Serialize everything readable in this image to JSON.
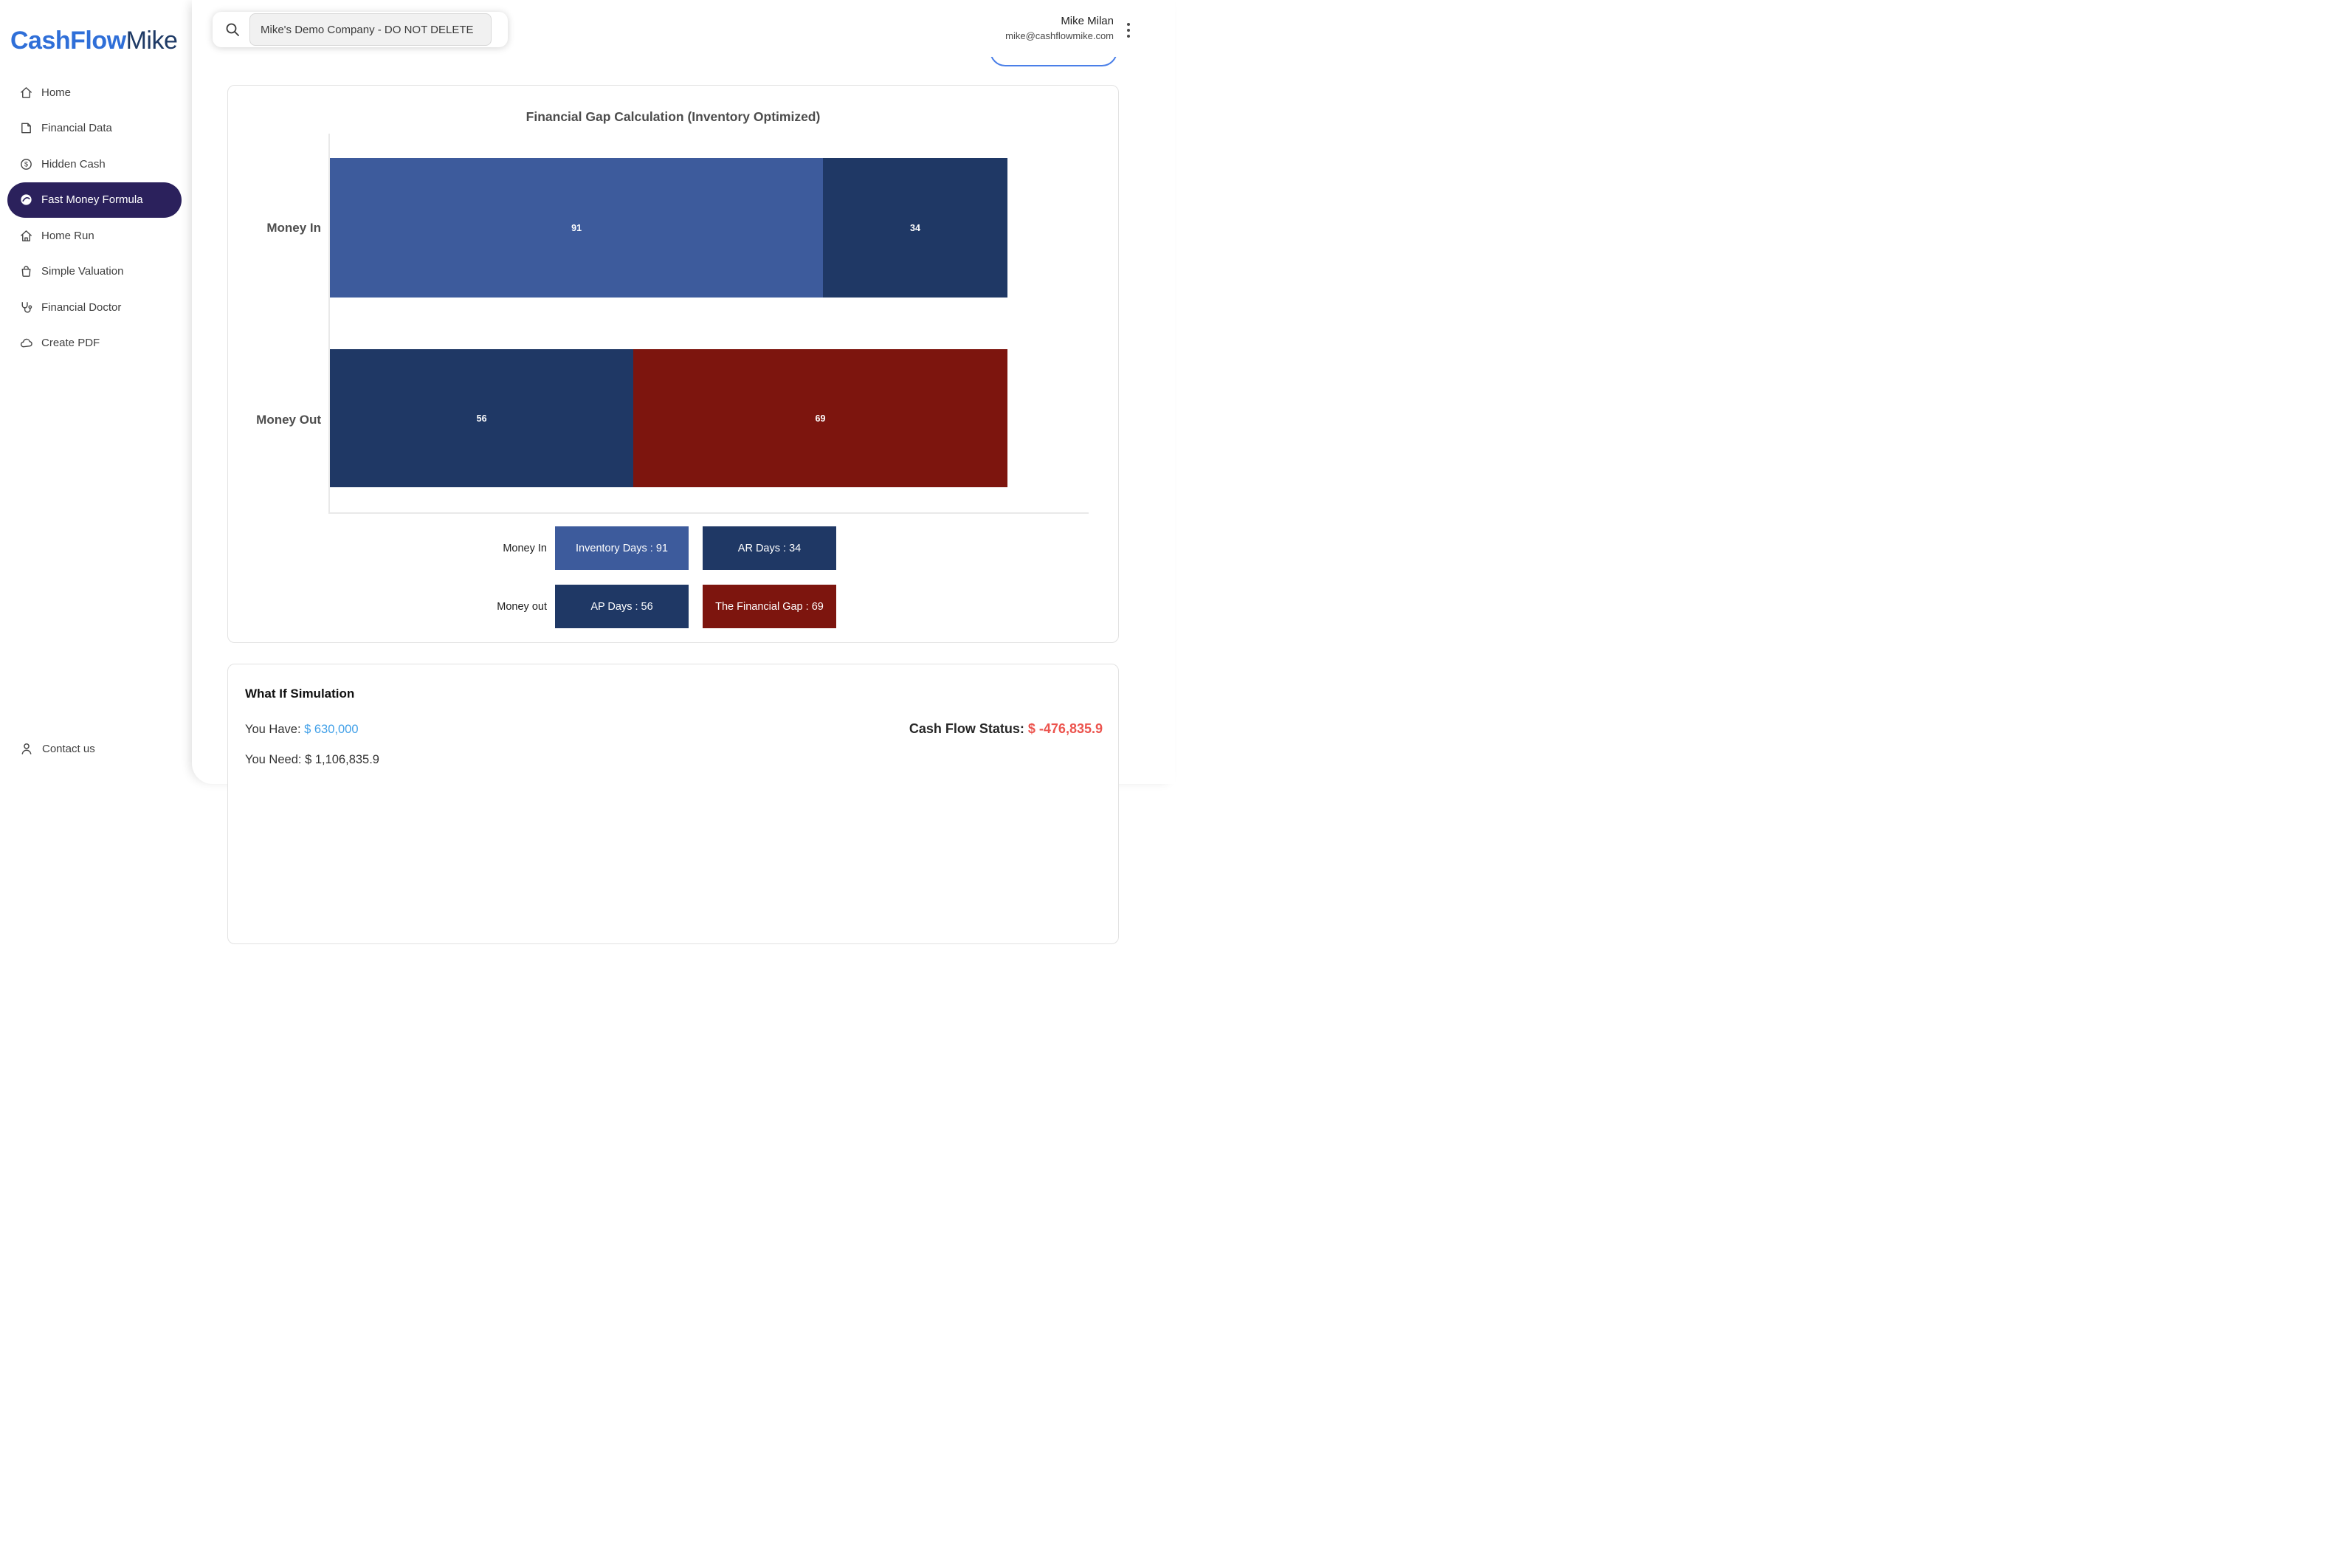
{
  "brand": {
    "cash": "Cash",
    "flow": "Flow",
    "mike": "Mike"
  },
  "sidebar": {
    "items": [
      {
        "label": "Home",
        "icon": "home-icon",
        "active": false
      },
      {
        "label": "Financial Data",
        "icon": "financial-data-icon",
        "active": false
      },
      {
        "label": "Hidden Cash",
        "icon": "hidden-cash-icon",
        "active": false
      },
      {
        "label": "Fast Money Formula",
        "icon": "fast-money-formula-icon",
        "active": true
      },
      {
        "label": "Home Run",
        "icon": "home-run-icon",
        "active": false
      },
      {
        "label": "Simple Valuation",
        "icon": "simple-valuation-icon",
        "active": false
      },
      {
        "label": "Financial Doctor",
        "icon": "financial-doctor-icon",
        "active": false
      },
      {
        "label": "Create PDF",
        "icon": "create-pdf-icon",
        "active": false
      }
    ],
    "contact_label": "Contact us"
  },
  "header": {
    "search_value": "Mike's Demo Company - DO NOT DELETE",
    "user_name": "Mike Milan",
    "user_email": "mike@cashflowmike.com"
  },
  "chart_data": {
    "type": "bar",
    "orientation": "horizontal",
    "stacked": true,
    "title": "Financial Gap Calculation (Inventory Optimized)",
    "axis_max": 140,
    "grid": false,
    "categories": [
      "Money In",
      "Money Out"
    ],
    "rows": [
      {
        "category": "Money In",
        "segments": [
          {
            "name": "Inventory Days",
            "value": 91,
            "color": "#3d5b9c"
          },
          {
            "name": "AR Days",
            "value": 34,
            "color": "#1f3865"
          }
        ]
      },
      {
        "category": "Money Out",
        "segments": [
          {
            "name": "AP Days",
            "value": 56,
            "color": "#1f3865"
          },
          {
            "name": "The Financial Gap",
            "value": 69,
            "color": "#7d150e"
          }
        ]
      }
    ],
    "legend": {
      "position": "bottom",
      "rows": [
        {
          "label": "Money In",
          "items": [
            {
              "text": "Inventory Days : 91",
              "color": "#3d5b9c"
            },
            {
              "text": "AR Days : 34",
              "color": "#1f3865"
            }
          ]
        },
        {
          "label": "Money out",
          "items": [
            {
              "text": "AP Days : 56",
              "color": "#1f3865"
            },
            {
              "text": "The Financial Gap : 69",
              "color": "#7d150e"
            }
          ]
        }
      ]
    }
  },
  "simulation": {
    "title": "What If Simulation",
    "you_have_label": "You Have:",
    "you_have_value": "$ 630,000",
    "you_need_label": "You Need:",
    "you_need_value": "$ 1,106,835.9",
    "status_label": "Cash Flow Status:",
    "status_value": "$ -476,835.9"
  },
  "colors": {
    "accent_blue": "#41a0e8",
    "negative_red": "#ec544e",
    "bar_blue": "#3d5b9c",
    "bar_navy": "#1f3865",
    "bar_red": "#7d150e",
    "active_nav_bg": "#2b215c",
    "logo_blue": "#2f6fd8"
  }
}
